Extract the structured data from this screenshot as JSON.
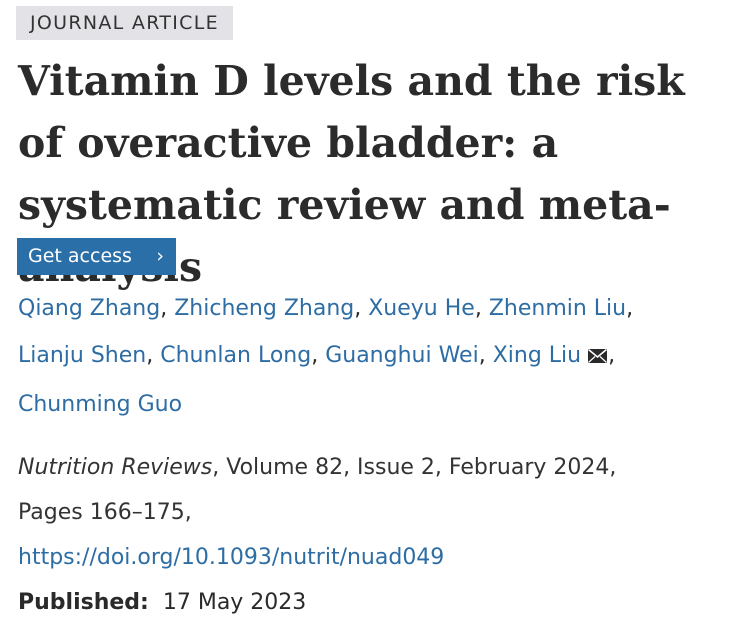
{
  "article_type": "JOURNAL ARTICLE",
  "title": "Vitamin D levels and the risk of overactive bladder: a systematic review and meta-analysis",
  "get_access": {
    "label": "Get access",
    "chevron": "›"
  },
  "authors": [
    "Qiang Zhang",
    "Zhicheng Zhang",
    "Xueyu He",
    "Zhenmin Liu",
    "Lianju Shen",
    "Chunlan Long",
    "Guanghui Wei",
    "Xing Liu",
    "Chunming Guo"
  ],
  "separator": ",",
  "corresponding_author_icon": "mail-icon",
  "citation": {
    "journal": "Nutrition Reviews",
    "volume_issue_date": ", Volume 82, Issue 2, February 2024,",
    "pages": "Pages 166–175,",
    "doi": "https://doi.org/10.1093/nutrit/nuad049"
  },
  "published": {
    "label": "Published:",
    "date": "17 May 2023"
  },
  "colors": {
    "link": "#2e6da4",
    "button": "#2b6fa9",
    "badge_bg": "#e3e3e7"
  }
}
